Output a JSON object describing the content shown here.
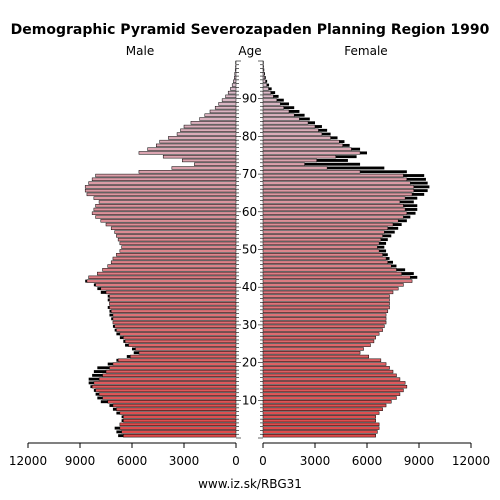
{
  "chart_data": {
    "type": "bar",
    "title": "Demographic Pyramid Severozapaden Planning Region 1990",
    "left_label": "Male",
    "center_label": "Age",
    "right_label": "Female",
    "source": "www.iz.sk/RBG31",
    "x_ticks_male": [
      "12000",
      "9000",
      "6000",
      "3000",
      "0"
    ],
    "x_ticks_female": [
      "0",
      "3000",
      "6000",
      "9000",
      "12000"
    ],
    "age_ticks": [
      "10",
      "20",
      "30",
      "40",
      "50",
      "60",
      "70",
      "80",
      "90"
    ],
    "xlim": [
      0,
      12000
    ],
    "age_range": [
      0,
      100
    ],
    "colors": {
      "young": "#e04848",
      "old": "#d9c3d2",
      "outline": "#000000",
      "excess": "#000000"
    },
    "series": [
      {
        "name": "Male",
        "values": [
          6800,
          6900,
          7000,
          6700,
          6600,
          6600,
          6900,
          7100,
          7300,
          7800,
          8000,
          8100,
          8200,
          8400,
          8500,
          8500,
          8300,
          8200,
          8000,
          7400,
          6900,
          6300,
          5900,
          6000,
          6400,
          6500,
          6700,
          6900,
          7000,
          7100,
          7100,
          7200,
          7300,
          7300,
          7400,
          7300,
          7400,
          7400,
          7800,
          8000,
          8200,
          8700,
          8500,
          8000,
          7700,
          7400,
          7200,
          7100,
          6900,
          6700,
          6600,
          6700,
          6800,
          6900,
          7000,
          7200,
          7500,
          7800,
          8100,
          8300,
          8200,
          8100,
          7900,
          8200,
          8600,
          8700,
          8700,
          8500,
          8300,
          8100,
          5600,
          3700,
          2400,
          3100,
          4200,
          5600,
          5100,
          4600,
          4400,
          3900,
          3400,
          3200,
          3000,
          2600,
          2100,
          1800,
          1500,
          1200,
          1000,
          800,
          600,
          450,
          320,
          220,
          150,
          100,
          70,
          45,
          30,
          20
        ]
      },
      {
        "name": "Female",
        "values": [
          6500,
          6600,
          6700,
          6700,
          6500,
          6500,
          6700,
          6900,
          7100,
          7400,
          7700,
          7900,
          8100,
          8300,
          8200,
          7900,
          7700,
          7500,
          7300,
          7100,
          6800,
          6100,
          5600,
          5800,
          6200,
          6400,
          6500,
          6700,
          6900,
          7000,
          7100,
          7100,
          7100,
          7200,
          7300,
          7300,
          7300,
          7300,
          7500,
          7800,
          8100,
          8600,
          8900,
          8700,
          8200,
          7700,
          7500,
          7300,
          7200,
          7100,
          7000,
          7100,
          7200,
          7400,
          7600,
          7800,
          8000,
          8300,
          8500,
          8800,
          8900,
          8900,
          8700,
          8900,
          9300,
          9500,
          9600,
          9500,
          9400,
          9300,
          8300,
          7000,
          5600,
          4900,
          5400,
          6000,
          5600,
          5000,
          4700,
          4300,
          3900,
          3700,
          3400,
          3000,
          2700,
          2400,
          2100,
          1800,
          1500,
          1200,
          900,
          700,
          500,
          350,
          240,
          160,
          110,
          70,
          45,
          30
        ]
      }
    ]
  }
}
